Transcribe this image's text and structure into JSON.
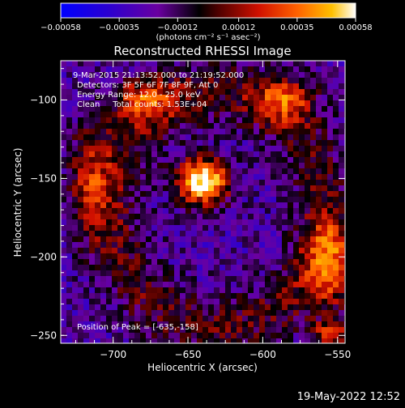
{
  "chart_data": {
    "type": "heatmap",
    "title": "Reconstructed RHESSI Image",
    "xlabel": "Heliocentric X (arcsec)",
    "ylabel": "Heliocentric Y (arcsec)",
    "xlim": [
      -735,
      -545
    ],
    "ylim": [
      -255,
      -75
    ],
    "xticks": [
      -700,
      -650,
      -600,
      -550
    ],
    "yticks": [
      -100,
      -150,
      -200,
      -250
    ],
    "colorbar": {
      "min": -0.00058,
      "max": 0.00058,
      "ticks": [
        -0.00058,
        -0.00035,
        -0.00012,
        0.00012,
        0.00035,
        0.00058
      ],
      "tick_labels": [
        "-0.00058",
        "-0.00035",
        "-0.00012",
        "0.00012",
        "0.00035",
        "0.00058"
      ],
      "units_label": "(photons cm⁻² s⁻¹ asec⁻²)"
    },
    "info_lines": [
      "9-Mar-2015 21:13:52.000 to 21:19:52.000",
      "Detectors: 3F 5F 6F 7F 8F 9F, Att 0",
      "Energy Range: 12.0 - 25.0 keV",
      "Clean     Total counts: 1.53E+04"
    ],
    "peak_text": "Position of Peak = [-635,-158]",
    "peak": {
      "x": -635,
      "y": -158
    },
    "sources": [
      {
        "x": -640,
        "y": -152,
        "amp": 1.0,
        "sx": 12,
        "sy": 10
      },
      {
        "x": -555,
        "y": -205,
        "amp": 0.55,
        "sx": 12,
        "sy": 20
      },
      {
        "x": -680,
        "y": -100,
        "amp": 0.45,
        "sx": 15,
        "sy": 10
      },
      {
        "x": -585,
        "y": -100,
        "amp": 0.45,
        "sx": 14,
        "sy": 10
      },
      {
        "x": -715,
        "y": -150,
        "amp": 0.4,
        "sx": 10,
        "sy": 25
      },
      {
        "x": -555,
        "y": -250,
        "amp": 0.5,
        "sx": 8,
        "sy": 6
      }
    ]
  },
  "footer_date": "19-May-2022 12:52"
}
